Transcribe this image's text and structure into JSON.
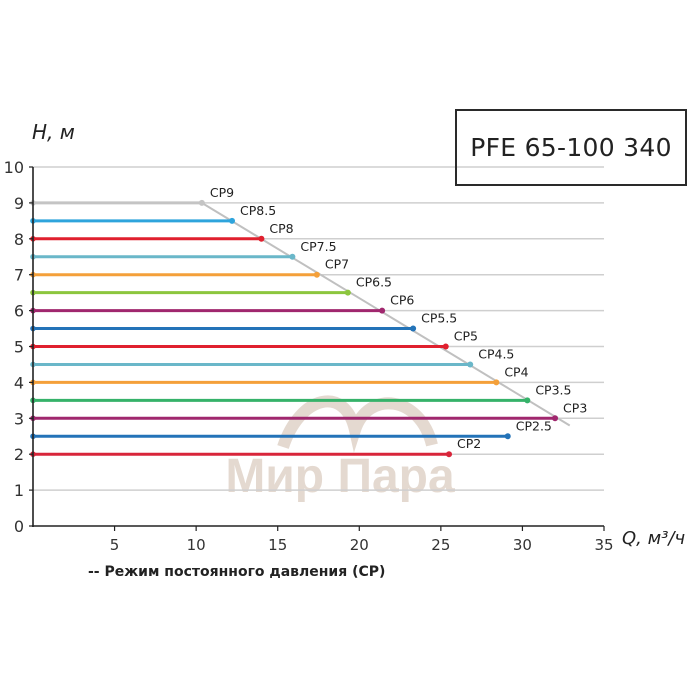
{
  "title": "PFE 65-100 340",
  "legend_note": "-- Режим постоянного давления (CP)",
  "watermark": "Мир Пара",
  "chart_data": {
    "type": "line",
    "title": "PFE 65-100 340",
    "xlabel": "Q, м³/ч",
    "ylabel": "H, м",
    "xlim": [
      0,
      35
    ],
    "ylim": [
      0,
      10
    ],
    "xticks": [
      5,
      10,
      15,
      20,
      25,
      30,
      35
    ],
    "yticks": [
      0,
      1,
      2,
      3,
      4,
      5,
      6,
      7,
      8,
      9,
      10
    ],
    "grid": "horizontal",
    "legend_note": "-- Режим постоянного давления (CP)",
    "max_curve": {
      "x": [
        10.35,
        32.9
      ],
      "y": [
        9.0,
        2.8
      ],
      "color": "#c0c0c0"
    },
    "series": [
      {
        "name": "CP9",
        "head": 9.0,
        "q_max": 10.35,
        "color": "#c4c4c4"
      },
      {
        "name": "CP8.5",
        "head": 8.5,
        "q_max": 12.2,
        "color": "#2ea4dc"
      },
      {
        "name": "CP8",
        "head": 8.0,
        "q_max": 14.0,
        "color": "#e0202e"
      },
      {
        "name": "CP7.5",
        "head": 7.5,
        "q_max": 15.9,
        "color": "#6ab7c9"
      },
      {
        "name": "CP7",
        "head": 7.0,
        "q_max": 17.4,
        "color": "#f4a03a"
      },
      {
        "name": "CP6.5",
        "head": 6.5,
        "q_max": 19.3,
        "color": "#8cc63e"
      },
      {
        "name": "CP6",
        "head": 6.0,
        "q_max": 21.4,
        "color": "#a0276e"
      },
      {
        "name": "CP5.5",
        "head": 5.5,
        "q_max": 23.3,
        "color": "#2373b8"
      },
      {
        "name": "CP5",
        "head": 5.0,
        "q_max": 25.3,
        "color": "#e0202e"
      },
      {
        "name": "CP4.5",
        "head": 4.5,
        "q_max": 26.8,
        "color": "#6ab7c9"
      },
      {
        "name": "CP4",
        "head": 4.0,
        "q_max": 28.4,
        "color": "#f4a03a"
      },
      {
        "name": "CP3.5",
        "head": 3.5,
        "q_max": 30.3,
        "color": "#36b26a"
      },
      {
        "name": "CP3",
        "head": 3.0,
        "q_max": 32.0,
        "color": "#a0276e"
      },
      {
        "name": "CP2.5",
        "head": 2.5,
        "q_max": 29.1,
        "color": "#2373b8"
      },
      {
        "name": "CP2",
        "head": 2.0,
        "q_max": 25.5,
        "color": "#d8253a"
      }
    ]
  }
}
